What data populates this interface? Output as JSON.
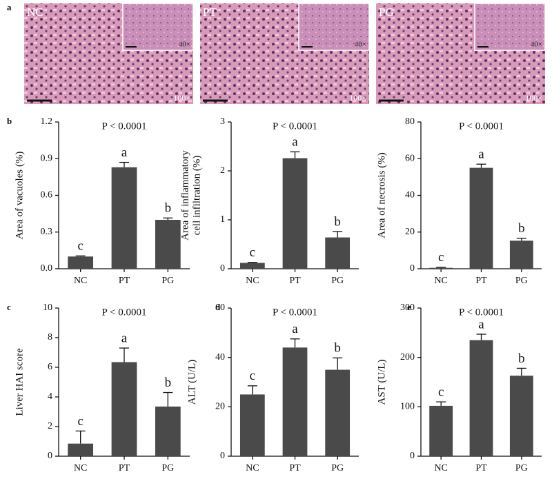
{
  "panel_letters": [
    "a",
    "b",
    "c",
    "d",
    "e"
  ],
  "micrographs": [
    {
      "label": "NC",
      "inset": "40×",
      "magnification": "100×"
    },
    {
      "label": "PT",
      "inset": "40×",
      "magnification": "100×"
    },
    {
      "label": "PG",
      "inset": "40×",
      "magnification": "100×"
    }
  ],
  "chart_data": [
    {
      "type": "bar",
      "title": "P < 0.0001",
      "ylabel": [
        "Area of vacuoles (%)"
      ],
      "categories": [
        "NC",
        "PT",
        "PG"
      ],
      "values": [
        0.1,
        0.83,
        0.4
      ],
      "errors": [
        0.005,
        0.04,
        0.015
      ],
      "annotations": [
        "c",
        "a",
        "b"
      ],
      "color": "#4a4a4a",
      "ylim": [
        0,
        1.2
      ],
      "yticks": [
        {
          "value": 0,
          "label": "0.0"
        },
        {
          "value": 0.3,
          "label": "0.3"
        },
        {
          "value": 0.6,
          "label": "0.6"
        },
        {
          "value": 0.9,
          "label": "0.9"
        },
        {
          "value": 1.2,
          "label": "1.2"
        }
      ]
    },
    {
      "type": "bar",
      "title": "P < 0.0001",
      "ylabel": [
        "Area of inflammatory",
        "cell infiltration (%)"
      ],
      "categories": [
        "NC",
        "PT",
        "PG"
      ],
      "values": [
        0.12,
        2.26,
        0.64
      ],
      "errors": [
        0.01,
        0.13,
        0.12
      ],
      "annotations": [
        "c",
        "a",
        "b"
      ],
      "color": "#4a4a4a",
      "ylim": [
        0,
        3
      ],
      "yticks": [
        0,
        1,
        2,
        3
      ]
    },
    {
      "type": "bar",
      "title": "P < 0.0001",
      "ylabel": [
        "Area of necrosis (%)"
      ],
      "categories": [
        "NC",
        "PT",
        "PG"
      ],
      "values": [
        0.5,
        55,
        15.3
      ],
      "errors": [
        0.3,
        2,
        1.3
      ],
      "annotations": [
        "c",
        "a",
        "b"
      ],
      "color": "#4a4a4a",
      "ylim": [
        0,
        80
      ],
      "yticks": [
        0,
        20,
        40,
        60,
        80
      ]
    },
    {
      "type": "bar",
      "title": "P < 0.0001",
      "ylabel": [
        "Liver HAI score"
      ],
      "categories": [
        "NC",
        "PT",
        "PG"
      ],
      "values": [
        0.85,
        6.35,
        3.35
      ],
      "errors": [
        0.85,
        0.95,
        0.95
      ],
      "annotations": [
        "c",
        "a",
        "b"
      ],
      "color": "#4a4a4a",
      "ylim": [
        0,
        10
      ],
      "yticks": [
        0,
        2,
        4,
        6,
        8,
        10
      ]
    },
    {
      "type": "bar",
      "title": "P < 0.0001",
      "ylabel": [
        "ALT (U/L)"
      ],
      "categories": [
        "NC",
        "PT",
        "PG"
      ],
      "values": [
        25,
        44,
        35
      ],
      "errors": [
        3.5,
        3.5,
        4.8
      ],
      "annotations": [
        "c",
        "a",
        "b"
      ],
      "color": "#4a4a4a",
      "ylim": [
        0,
        60
      ],
      "yticks": [
        0,
        20,
        40,
        60
      ]
    },
    {
      "type": "bar",
      "title": "P < 0.0001",
      "ylabel": [
        "AST (U/L)"
      ],
      "categories": [
        "NC",
        "PT",
        "PG"
      ],
      "values": [
        102,
        235,
        163
      ],
      "errors": [
        8,
        12,
        15
      ],
      "annotations": [
        "c",
        "a",
        "b"
      ],
      "color": "#4a4a4a",
      "ylim": [
        0,
        300
      ],
      "yticks": [
        0,
        100,
        200,
        300
      ]
    }
  ]
}
